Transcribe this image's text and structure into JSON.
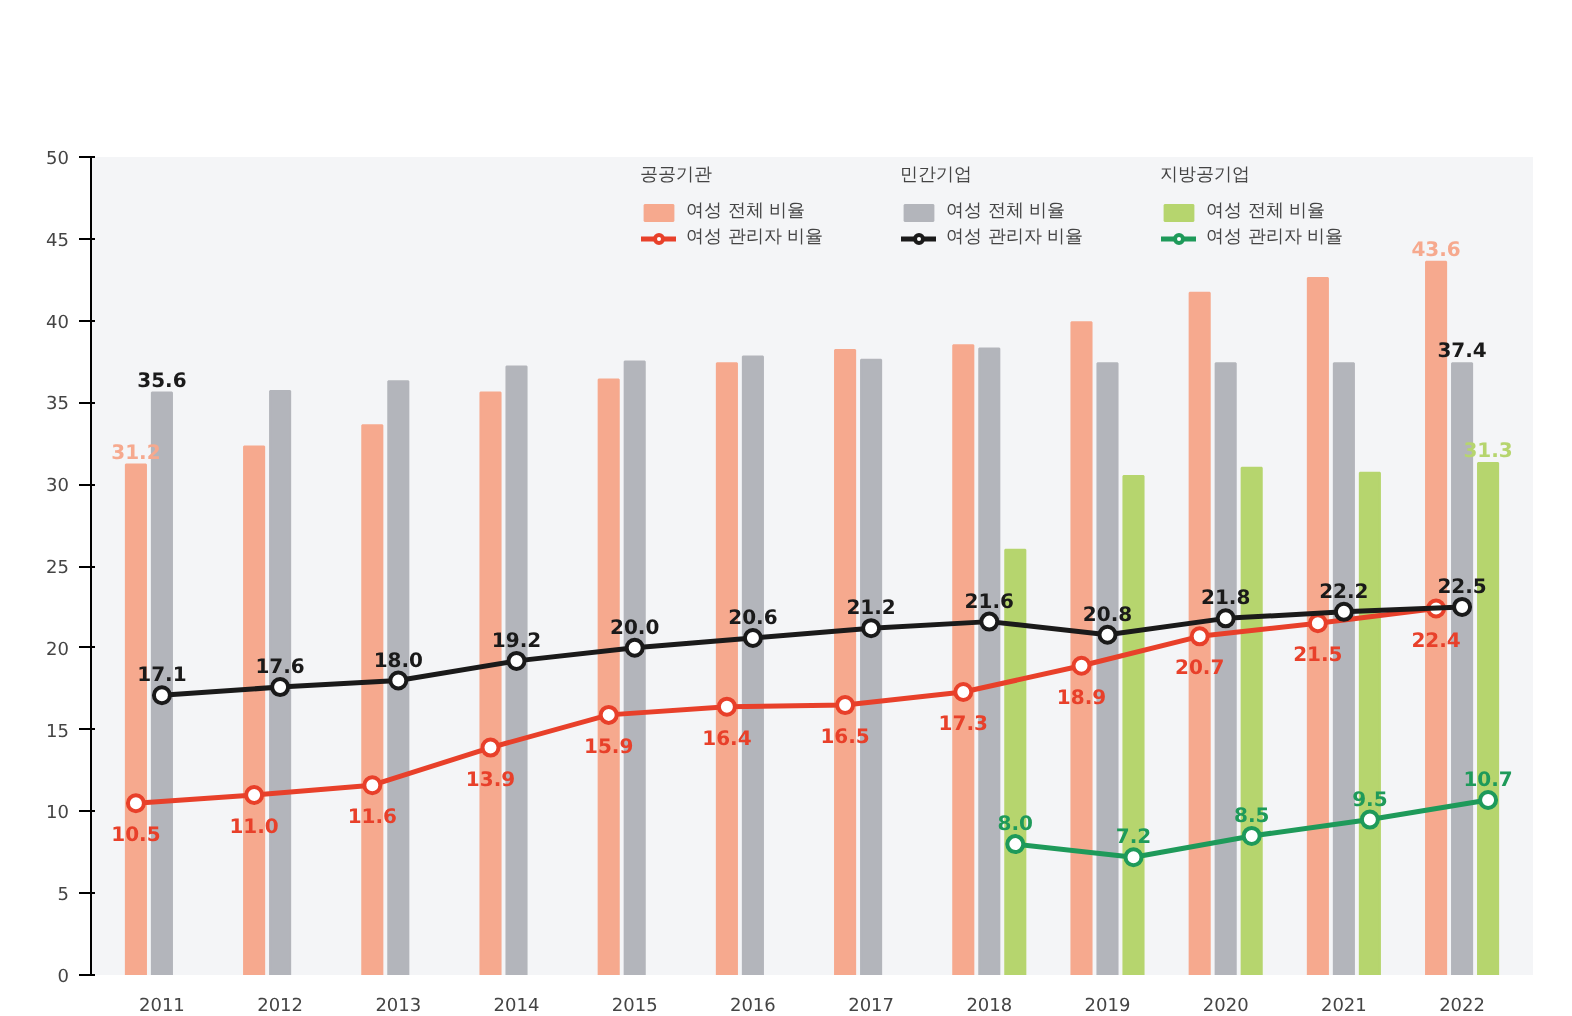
{
  "chart_data": {
    "type": "bar",
    "categories": [
      "2011",
      "2012",
      "2013",
      "2014",
      "2015",
      "2016",
      "2017",
      "2018",
      "2019",
      "2020",
      "2021",
      "2022"
    ],
    "ylim": [
      0,
      50
    ],
    "yticks": [
      0,
      5,
      10,
      15,
      20,
      25,
      30,
      35,
      40,
      45,
      50
    ],
    "grid": false,
    "legend": "top right",
    "legend_title": [
      "공공기관",
      "민간기업",
      "지방공기업"
    ],
    "series": [
      {
        "name": "여성 전체 비율",
        "color": "#f6a98e",
        "values": [
          31.2,
          32.3,
          33.6,
          35.6,
          36.4,
          37.4,
          38.2,
          38.5,
          39.9,
          41.7,
          42.6,
          43.6
        ],
        "value_labels": [
          "31.2",
          null,
          null,
          null,
          null,
          null,
          null,
          null,
          null,
          null,
          null,
          "43.6"
        ]
      },
      {
        "name": "여성 전체 비율",
        "color": "#b3b5bb",
        "values": [
          35.6,
          35.7,
          36.3,
          37.2,
          37.5,
          37.8,
          37.6,
          38.3,
          37.4,
          37.4,
          37.4,
          37.4
        ],
        "value_labels": [
          "35.6",
          null,
          null,
          null,
          null,
          null,
          null,
          null,
          null,
          null,
          null,
          "37.4"
        ]
      },
      {
        "name": "여성 전체 비율",
        "color": "#b6d56e",
        "values": [
          null,
          null,
          null,
          null,
          null,
          null,
          null,
          26.0,
          30.5,
          31.0,
          30.7,
          31.3
        ],
        "value_labels": [
          null,
          null,
          null,
          null,
          null,
          null,
          null,
          null,
          null,
          null,
          null,
          "31.3"
        ]
      },
      {
        "name": "여성 관리자 비율",
        "type": "line",
        "color": "#e8402a",
        "marker": "circle",
        "values": [
          10.5,
          11.0,
          11.6,
          13.9,
          15.9,
          16.4,
          16.5,
          17.3,
          18.9,
          20.7,
          21.5,
          22.4
        ],
        "value_labels": [
          "10.5",
          "11.0",
          "11.6",
          "13.9",
          "15.9",
          "16.4",
          "16.5",
          "17.3",
          "18.9",
          "20.7",
          "21.5",
          "22.4"
        ]
      },
      {
        "name": "여성 관리자 비율",
        "type": "line",
        "color": "#1a1a1a",
        "marker": "circle",
        "values": [
          17.1,
          17.6,
          18.0,
          19.2,
          20.0,
          20.6,
          21.2,
          21.6,
          20.8,
          21.8,
          22.2,
          22.5
        ],
        "value_labels": [
          "17.1",
          "17.6",
          "18.0",
          "19.2",
          "20.0",
          "20.6",
          "21.2",
          "21.6",
          "20.8",
          "21.8",
          "22.2",
          "22.5"
        ]
      },
      {
        "name": "여성 관리자 비율",
        "type": "line",
        "color": "#1e9a5a",
        "marker": "circle",
        "values": [
          null,
          null,
          null,
          null,
          null,
          null,
          null,
          8.0,
          7.2,
          8.5,
          9.5,
          10.7
        ],
        "value_labels": [
          null,
          null,
          null,
          null,
          null,
          null,
          null,
          "8.0",
          "7.2",
          "8.5",
          "9.5",
          "10.7"
        ]
      }
    ]
  }
}
